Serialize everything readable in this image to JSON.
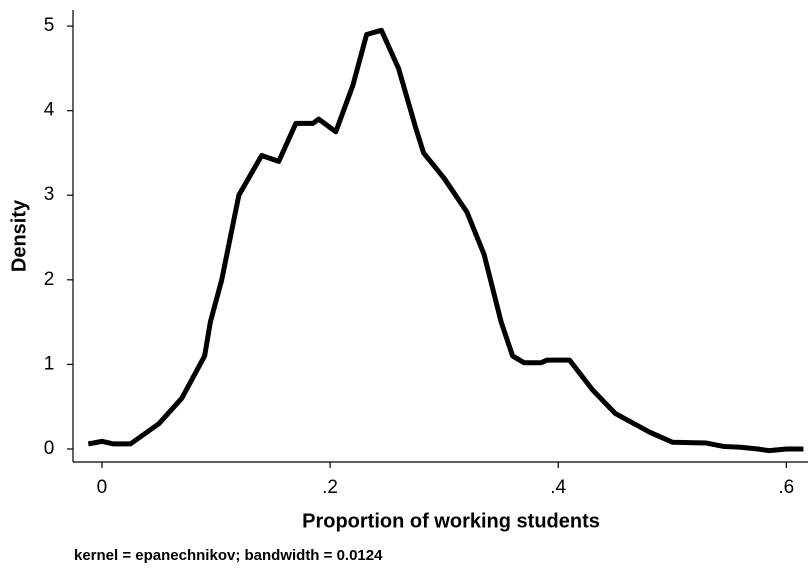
{
  "chart_data": {
    "type": "line",
    "xlabel": "Proportion of working students",
    "ylabel": "Density",
    "note": "kernel = epanechnikov; bandwidth = 0.0124",
    "x": [
      -0.012,
      0.0,
      0.01,
      0.025,
      0.05,
      0.07,
      0.09,
      0.095,
      0.105,
      0.108,
      0.12,
      0.14,
      0.155,
      0.17,
      0.185,
      0.19,
      0.2,
      0.205,
      0.22,
      0.232,
      0.245,
      0.26,
      0.275,
      0.282,
      0.3,
      0.32,
      0.335,
      0.35,
      0.36,
      0.37,
      0.385,
      0.39,
      0.41,
      0.43,
      0.45,
      0.48,
      0.5,
      0.53,
      0.545,
      0.56,
      0.575,
      0.585,
      0.6,
      0.615
    ],
    "series": [
      {
        "name": "Density",
        "color": "#000000",
        "values": [
          0.06,
          0.09,
          0.06,
          0.06,
          0.3,
          0.6,
          1.1,
          1.5,
          2.0,
          2.2,
          3.0,
          3.47,
          3.4,
          3.85,
          3.85,
          3.9,
          3.8,
          3.75,
          4.3,
          4.9,
          4.95,
          4.5,
          3.8,
          3.5,
          3.2,
          2.8,
          2.3,
          1.5,
          1.1,
          1.02,
          1.02,
          1.05,
          1.05,
          0.7,
          0.42,
          0.2,
          0.08,
          0.07,
          0.03,
          0.02,
          0.0,
          -0.02,
          0.0,
          0.0
        ]
      }
    ],
    "xlim": [
      -0.0254,
      0.619
    ],
    "ylim": [
      -0.154,
      5.19
    ],
    "xticks": [
      0,
      {
        "value": 0.2,
        "label": ".2"
      },
      {
        "value": 0.4,
        "label": ".4"
      },
      {
        "value": 0.6,
        "label": ".6"
      }
    ],
    "yticks": [
      0,
      1,
      2,
      3,
      4,
      5
    ],
    "grid": false
  }
}
